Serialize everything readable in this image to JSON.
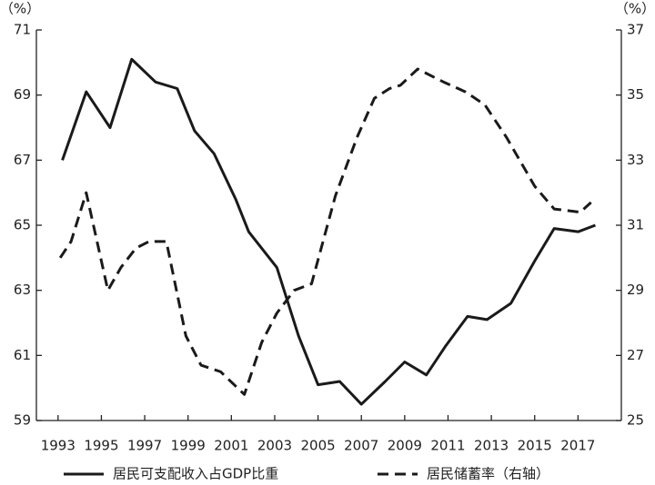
{
  "chart_data": {
    "type": "line",
    "y_label": "（%）",
    "y2_label": "（%）",
    "xlim": [
      1992,
      2019
    ],
    "xticks": [
      1993,
      1995,
      1997,
      1999,
      2001,
      2003,
      2005,
      2007,
      2009,
      2011,
      2013,
      2015,
      2017
    ],
    "ylim": [
      59,
      71
    ],
    "yticks": [
      59,
      61,
      63,
      65,
      67,
      69,
      71
    ],
    "y2lim": [
      25,
      37
    ],
    "y2ticks": [
      25,
      27,
      29,
      31,
      33,
      35,
      37
    ],
    "legend": "bottom",
    "series": [
      {
        "name": "居民可支配收入占GDP比重",
        "color": "#1a1a1a",
        "dash": "solid",
        "x": [
          1993.2,
          1994.3,
          1995.4,
          1996.4,
          1997.5,
          1998.5,
          1999.3,
          2000.2,
          2001.2,
          2001.8,
          2003.1,
          2004.1,
          2005.0,
          2006.0,
          2007.0,
          2008.1,
          2009.0,
          2010.0,
          2010.9,
          2011.9,
          2012.8,
          2013.9,
          2015.0,
          2015.9,
          2017.0,
          2017.8
        ],
        "values": [
          67.0,
          69.1,
          68.0,
          70.1,
          69.4,
          69.2,
          67.9,
          67.2,
          65.8,
          64.8,
          63.7,
          61.6,
          60.1,
          60.2,
          59.5,
          60.2,
          60.8,
          60.4,
          61.3,
          62.2,
          62.1,
          62.6,
          63.9,
          64.9,
          64.8,
          65.0
        ]
      },
      {
        "name": "居民储蓄率（右轴）",
        "color": "#1a1a1a",
        "dash": "dashed",
        "axis": "y2",
        "x": [
          1993.1,
          1993.6,
          1994.3,
          1995.3,
          1995.9,
          1996.6,
          1997.2,
          1998.0,
          1998.9,
          1999.6,
          2000.5,
          2001.6,
          2002.4,
          2003.1,
          2003.9,
          2004.7,
          2005.8,
          2006.8,
          2007.6,
          2008.3,
          2008.8,
          2009.6,
          2010.8,
          2011.8,
          2012.7,
          2013.7,
          2015.0,
          2015.9,
          2017.1,
          2017.6
        ],
        "values": [
          30.0,
          30.5,
          32.0,
          29.0,
          29.7,
          30.3,
          30.5,
          30.5,
          27.6,
          26.7,
          26.5,
          25.8,
          27.4,
          28.3,
          29.0,
          29.2,
          31.9,
          33.7,
          34.9,
          35.2,
          35.3,
          35.8,
          35.4,
          35.1,
          34.7,
          33.7,
          32.2,
          31.5,
          31.4,
          31.7
        ]
      }
    ]
  }
}
